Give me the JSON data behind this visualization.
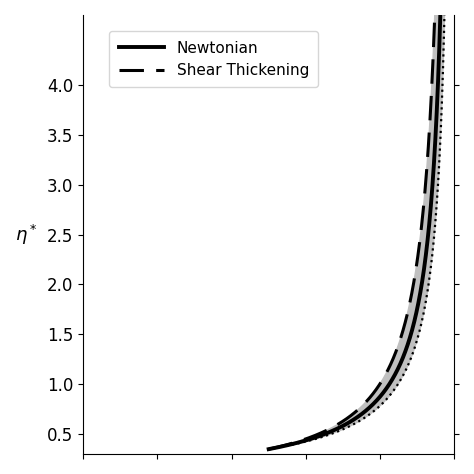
{
  "ylabel": "$\\eta^*$",
  "xlabel": "",
  "ylim": [
    0.3,
    4.7
  ],
  "xlim": [
    0.0,
    1.0
  ],
  "yticks": [
    0.5,
    1.0,
    1.5,
    2.0,
    2.5,
    3.0,
    3.5,
    4.0
  ],
  "legend_labels": [
    "Newtonian",
    "Shear Thickening"
  ],
  "line_color": "#000000",
  "fill_color": "#c0c0c0",
  "fill_alpha": 1.0,
  "newtonian_lw": 2.8,
  "dashed_lw": 2.2,
  "dotted_lw": 1.6,
  "n_newtonian": 1.0,
  "n_thinning": 0.5,
  "n_thickening": 1.5,
  "figsize": [
    4.74,
    4.74
  ],
  "dpi": 100
}
